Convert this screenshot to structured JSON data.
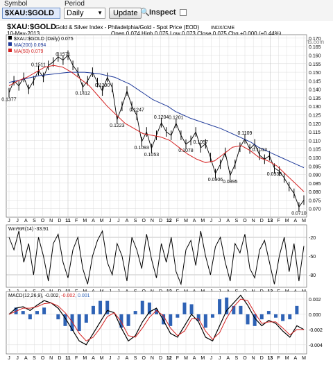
{
  "toolbar": {
    "symbol_label": "Symbol",
    "symbol_value": "$XAU:$GOLD",
    "period_label": "Period",
    "period_value": "Daily",
    "update_label": "Update",
    "inspect_label": "Inspect"
  },
  "header": {
    "title": "$XAU:$GOLD",
    "subtitle": "Gold & Silver Index - Philadelphia/Gold - Spot Price (EOD)",
    "exchange": "INDX/CME",
    "date": "10-May-2013",
    "ohlc": "Open 0.074 High 0.075 Low 0.073 Close 0.075 Chg +0.000 (+0.44%)",
    "watermark": "© StockCharts.com"
  },
  "colors": {
    "price": "#000000",
    "ma200": "#1f3a9a",
    "ma50": "#d42020",
    "macd_hist": "#2e62b5",
    "grid": "#dcdcdc"
  },
  "chart_data": [
    {
      "type": "line",
      "name": "price",
      "legend": [
        {
          "text": "$XAU:$GOLD (Daily) 0.075",
          "color": "#000000"
        },
        {
          "text": "MA(200) 0.094",
          "color": "#1f3a9a"
        },
        {
          "text": "MA(50) 0.079",
          "color": "#d42020"
        }
      ],
      "ylim": [
        0.065,
        0.172
      ],
      "yticks": [
        0.07,
        0.075,
        0.08,
        0.085,
        0.09,
        0.095,
        0.1,
        0.105,
        0.11,
        0.115,
        0.12,
        0.125,
        0.13,
        0.135,
        0.14,
        0.145,
        0.15,
        0.155,
        0.16,
        0.165,
        0.17
      ],
      "xticks": [
        "J",
        "J",
        "A",
        "S",
        "O",
        "N",
        "D",
        "11",
        "F",
        "M",
        "A",
        "M",
        "J",
        "J",
        "A",
        "S",
        "O",
        "N",
        "D",
        "12",
        "F",
        "M",
        "A",
        "M",
        "J",
        "J",
        "A",
        "S",
        "O",
        "N",
        "D",
        "13",
        "F",
        "M",
        "A",
        "M"
      ],
      "series": [
        {
          "name": "price",
          "values": [
            0.138,
            0.145,
            0.142,
            0.147,
            0.14,
            0.145,
            0.151,
            0.147,
            0.154,
            0.156,
            0.159,
            0.1571,
            0.16,
            0.154,
            0.15,
            0.1412,
            0.145,
            0.15,
            0.144,
            0.139,
            0.147,
            0.141,
            0.1223,
            0.13,
            0.139,
            0.13,
            0.1247,
            0.1093,
            0.115,
            0.1053,
            0.113,
            0.1204,
            0.115,
            0.113,
            0.1201,
            0.113,
            0.1078,
            0.11,
            0.115,
            0.1057,
            0.108,
            0.1,
            0.0906,
            0.096,
            0.103,
            0.0895,
            0.096,
            0.106,
            0.1109,
            0.105,
            0.108,
            0.1013,
            0.099,
            0.101,
            0.0938,
            0.092,
            0.088,
            0.083,
            0.079,
            0.071,
            0.075
          ]
        },
        {
          "name": "MA(200)",
          "values": [
            0.144,
            0.145,
            0.146,
            0.147,
            0.148,
            0.1485,
            0.149,
            0.1495,
            0.15,
            0.15,
            0.15,
            0.1495,
            0.149,
            0.148,
            0.147,
            0.145,
            0.143,
            0.14,
            0.137,
            0.134,
            0.132,
            0.13,
            0.127,
            0.125,
            0.123,
            0.1215,
            0.12,
            0.1185,
            0.117,
            0.115,
            0.113,
            0.111,
            0.109,
            0.106,
            0.104,
            0.102,
            0.1,
            0.098,
            0.096,
            0.094
          ]
        },
        {
          "name": "MA(50)",
          "values": [
            0.142,
            0.145,
            0.147,
            0.15,
            0.153,
            0.154,
            0.153,
            0.15,
            0.146,
            0.142,
            0.136,
            0.13,
            0.125,
            0.12,
            0.117,
            0.114,
            0.113,
            0.112,
            0.11,
            0.106,
            0.102,
            0.099,
            0.097,
            0.098,
            0.102,
            0.106,
            0.107,
            0.104,
            0.1,
            0.098,
            0.095,
            0.09,
            0.085,
            0.08
          ]
        }
      ],
      "annotations": [
        "0.1511",
        "0.1377",
        "0.1571",
        "0.1412",
        "0.1390",
        "0.1223",
        "0.1247",
        "0.1093",
        "0.1053",
        "0.1204",
        "0.1201",
        "0.1078",
        "0.1057",
        "0.0906",
        "0.0895",
        "0.1109",
        "0.1013",
        "0.0938",
        "0.0710"
      ]
    },
    {
      "type": "line",
      "name": "williams",
      "legend": "Wm%R(14) -33.91",
      "ylim": [
        -100,
        0
      ],
      "yticks": [
        -20,
        -50,
        -80
      ],
      "values": [
        -20,
        -40,
        -10,
        -60,
        -30,
        -80,
        -20,
        -50,
        -90,
        -30,
        -15,
        -60,
        -85,
        -40,
        -20,
        -70,
        -95,
        -50,
        -25,
        -10,
        -60,
        -80,
        -30,
        -50,
        -90,
        -20,
        -40,
        -70,
        -15,
        -55,
        -85,
        -30,
        -60,
        -20,
        -75,
        -95,
        -40,
        -25,
        -65,
        -10,
        -50,
        -80,
        -35,
        -20,
        -60,
        -90,
        -30,
        -45,
        -15,
        -70,
        -85,
        -40,
        -25,
        -60,
        -95,
        -50,
        -20,
        -75,
        -30,
        -90,
        -34
      ]
    },
    {
      "type": "line",
      "name": "macd",
      "legend": [
        "MACD(12,26,9)",
        "-0.002",
        "-0.002",
        "0.001"
      ],
      "ylim": [
        -0.0052,
        0.003
      ],
      "yticks": [
        0.002,
        0.0,
        -0.002,
        -0.004
      ],
      "series": [
        {
          "name": "MACD",
          "values": [
            0.0,
            0.0008,
            0.001,
            0.0005,
            0.0012,
            0.0018,
            0.0015,
            0.0008,
            -0.0005,
            -0.002,
            -0.0035,
            -0.004,
            -0.0025,
            -0.001,
            0.0005,
            0.0002,
            -0.0018,
            -0.0035,
            -0.0028,
            -0.001,
            0.0003,
            0.0008,
            -0.0008,
            -0.0025,
            -0.003,
            -0.0015,
            0.0,
            -0.001,
            -0.003,
            -0.0035,
            -0.0015,
            0.0005,
            0.0015,
            0.0025,
            0.0012,
            -0.0005,
            -0.0015,
            -0.0008,
            -0.0012,
            -0.0022,
            -0.003,
            -0.0015,
            -0.002
          ]
        },
        {
          "name": "Signal",
          "values": [
            0.0,
            0.0004,
            0.0008,
            0.0008,
            0.001,
            0.0014,
            0.0015,
            0.0011,
            0.0002,
            -0.001,
            -0.0025,
            -0.0035,
            -0.003,
            -0.0018,
            -0.0003,
            0.0002,
            -0.001,
            -0.0028,
            -0.003,
            -0.0018,
            -0.0004,
            0.0005,
            -0.0002,
            -0.0018,
            -0.0028,
            -0.0022,
            -0.0006,
            -0.0006,
            -0.0022,
            -0.0033,
            -0.0024,
            -0.0005,
            0.001,
            0.002,
            0.0018,
            0.0002,
            -0.0012,
            -0.001,
            -0.001,
            -0.0018,
            -0.0027,
            -0.002,
            -0.002
          ]
        }
      ]
    }
  ]
}
